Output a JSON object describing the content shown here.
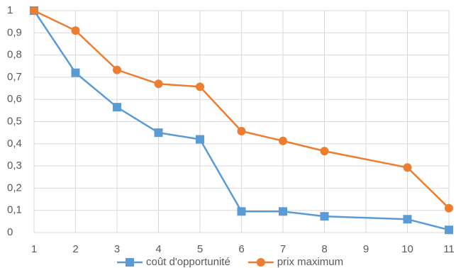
{
  "chart_data": {
    "type": "line",
    "x": [
      1,
      2,
      3,
      4,
      5,
      6,
      7,
      8,
      10,
      11
    ],
    "series": [
      {
        "name": "coût d'opportunité",
        "color": "#5b9bd5",
        "marker": "square",
        "values": [
          1,
          0.72,
          0.565,
          0.45,
          0.42,
          0.095,
          0.095,
          0.073,
          0.06,
          0.012
        ]
      },
      {
        "name": "prix maximum",
        "color": "#ed7d31",
        "marker": "circle",
        "values": [
          1,
          0.91,
          0.733,
          0.67,
          0.657,
          0.457,
          0.413,
          0.367,
          0.293,
          0.11
        ]
      }
    ],
    "xlim": [
      1,
      11
    ],
    "xticks": [
      1,
      2,
      3,
      4,
      5,
      6,
      7,
      8,
      9,
      10,
      11
    ],
    "ylim": [
      0,
      1
    ],
    "yticks": [
      0,
      {
        "value": 0.1,
        "label": "0,1"
      },
      {
        "value": 0.2,
        "label": "0,2"
      },
      {
        "value": 0.3,
        "label": "0,3"
      },
      {
        "value": 0.4,
        "label": "0,4"
      },
      {
        "value": 0.5,
        "label": "0,5"
      },
      {
        "value": 0.6,
        "label": "0,6"
      },
      {
        "value": 0.7,
        "label": "0,7"
      },
      {
        "value": 0.8,
        "label": "0,8"
      },
      {
        "value": 0.9,
        "label": "0,9"
      },
      1
    ],
    "grid": true,
    "legend": "bottom"
  }
}
